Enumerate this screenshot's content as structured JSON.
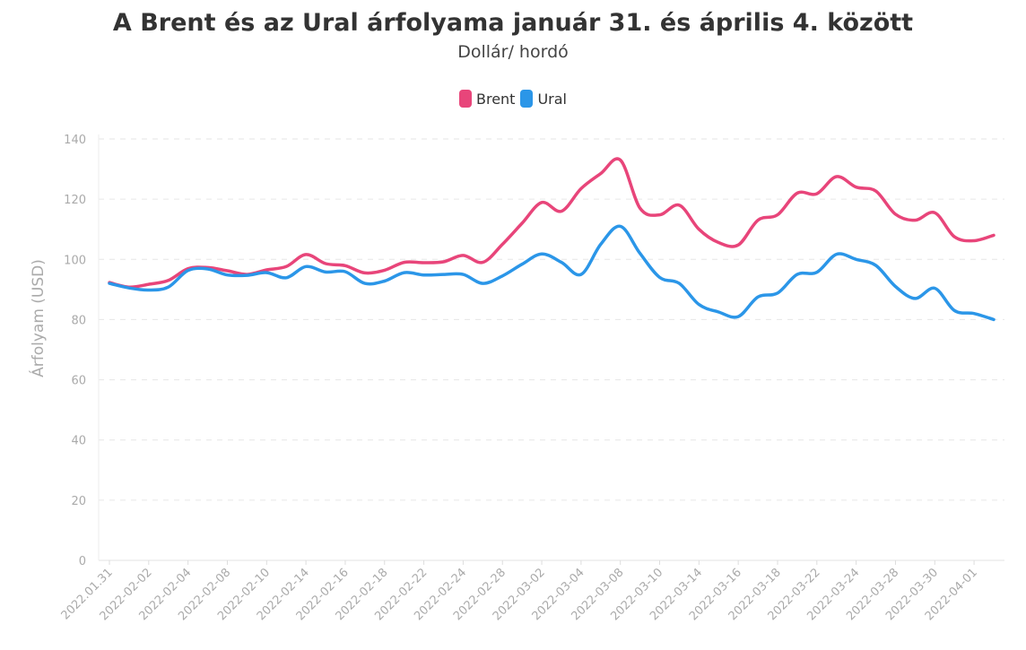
{
  "chart_data": {
    "type": "line",
    "title": "A Brent és az Ural árfolyama január 31. és április 4. között",
    "subtitle": "Dollár/ hordó",
    "ylabel": "Árfolyam (USD)",
    "xlabel": "",
    "ylim": [
      0,
      140
    ],
    "yticks": [
      0,
      20,
      40,
      60,
      80,
      100,
      120,
      140
    ],
    "grid": "horizontal dashed",
    "legend_position": "top-center",
    "x": [
      "2022.01.31",
      "2022-02-01",
      "2022-02-02",
      "2022-02-03",
      "2022-02-04",
      "2022-02-07",
      "2022-02-08",
      "2022-02-09",
      "2022-02-10",
      "2022-02-11",
      "2022-02-14",
      "2022-02-15",
      "2022-02-16",
      "2022-02-17",
      "2022-02-18",
      "2022-02-21",
      "2022-02-22",
      "2022-02-23",
      "2022-02-24",
      "2022-02-25",
      "2022-02-28",
      "2022-03-01",
      "2022-03-02",
      "2022-03-03",
      "2022-03-04",
      "2022-03-07",
      "2022-03-08",
      "2022-03-09",
      "2022-03-10",
      "2022-03-11",
      "2022-03-14",
      "2022-03-15",
      "2022-03-16",
      "2022-03-17",
      "2022-03-18",
      "2022-03-21",
      "2022-03-22",
      "2022-03-23",
      "2022-03-24",
      "2022-03-25",
      "2022-03-28",
      "2022-03-29",
      "2022-03-30",
      "2022-03-31",
      "2022-04-01",
      "2022-04-04"
    ],
    "x_tick_labels": [
      "2022.01.31",
      "2022-02-02",
      "2022-02-04",
      "2022-02-08",
      "2022-02-10",
      "2022-02-14",
      "2022-02-16",
      "2022-02-18",
      "2022-02-22",
      "2022-02-24",
      "2022-02-28",
      "2022-03-02",
      "2022-03-04",
      "2022-03-08",
      "2022-03-10",
      "2022-03-14",
      "2022-03-16",
      "2022-03-18",
      "2022-03-22",
      "2022-03-24",
      "2022-03-28",
      "2022-03-30",
      "2022-04-01"
    ],
    "series": [
      {
        "name": "Brent",
        "color": "#e8457a",
        "values": [
          92.3,
          90.8,
          91.7,
          93,
          96.9,
          97.3,
          96.2,
          95,
          96.5,
          97.6,
          101.6,
          98.6,
          97.9,
          95.5,
          96.4,
          99,
          98.9,
          99.2,
          101.3,
          99,
          105,
          112,
          118.9,
          116,
          123.5,
          128.5,
          133,
          117,
          114.8,
          118,
          110,
          105.6,
          104.8,
          113,
          114.8,
          122,
          121.8,
          127.5,
          124,
          122.7,
          115,
          113,
          115.5,
          107.5,
          106.2,
          108
        ]
      },
      {
        "name": "Ural",
        "color": "#2b96e8",
        "values": [
          92,
          90.5,
          89.8,
          90.8,
          96.3,
          96.8,
          94.8,
          94.7,
          95.6,
          93.9,
          97.6,
          95.8,
          95.9,
          92,
          92.8,
          95.6,
          94.8,
          95,
          95,
          92,
          94.5,
          98.4,
          101.8,
          99,
          95,
          105,
          111,
          102,
          94,
          92,
          85,
          82.5,
          81,
          87.5,
          88.8,
          95,
          95.7,
          101.7,
          100,
          98,
          91,
          87,
          90.4,
          83,
          82,
          80
        ]
      }
    ]
  }
}
